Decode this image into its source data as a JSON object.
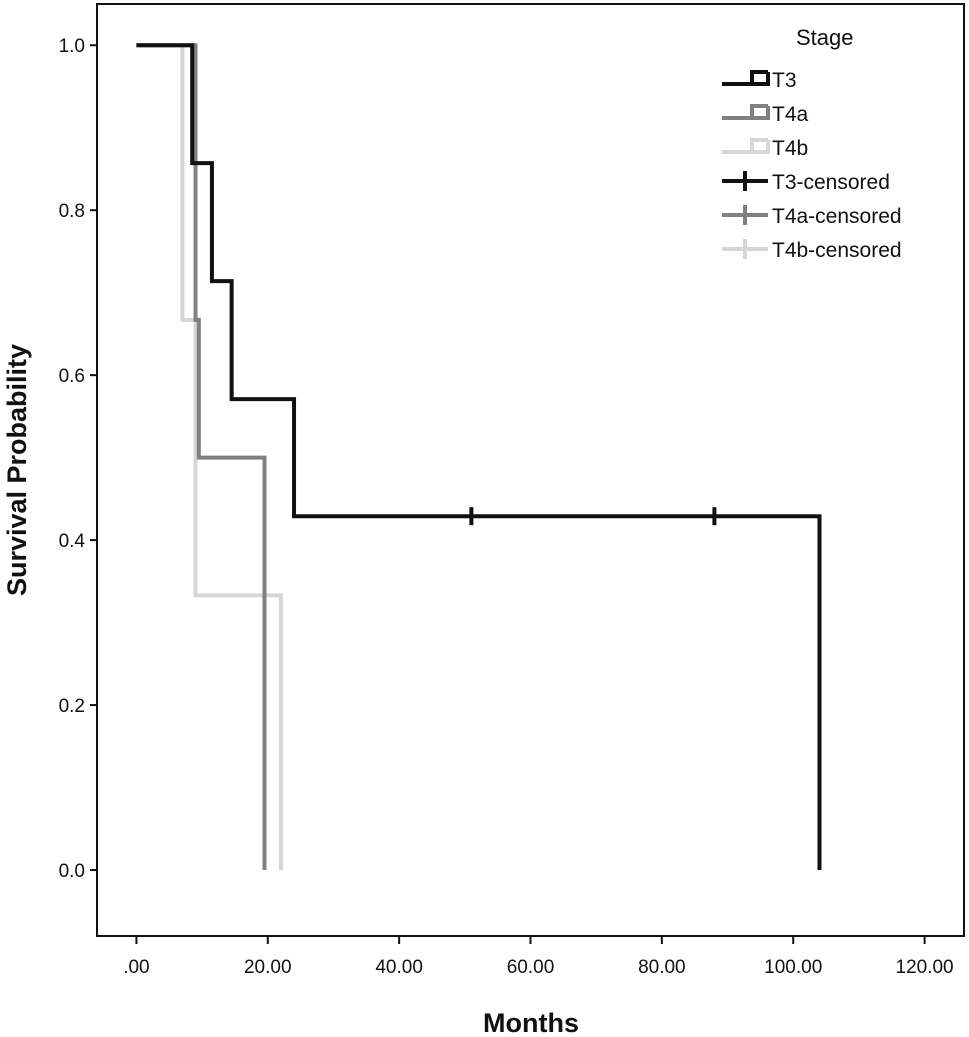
{
  "chart_data": {
    "type": "line",
    "subtype": "kaplan-meier-step",
    "xlabel": "Months",
    "ylabel": "Survival Probability",
    "xlim": [
      -6,
      126
    ],
    "ylim": [
      -0.08,
      1.05
    ],
    "x_ticks": [
      0,
      20,
      40,
      60,
      80,
      100,
      120
    ],
    "x_tick_labels": [
      ".00",
      "20.00",
      "40.00",
      "60.00",
      "80.00",
      "100.00",
      "120.00"
    ],
    "y_ticks": [
      0,
      0.2,
      0.4,
      0.6,
      0.8,
      1.0
    ],
    "y_tick_labels": [
      "0.0",
      "0.2",
      "0.4",
      "0.6",
      "0.8",
      "1.0"
    ],
    "grid": false,
    "legend": {
      "title": "Stage",
      "placement": "top-right",
      "entries": [
        {
          "label": "T3",
          "kind": "step",
          "color": "#111111"
        },
        {
          "label": "T4a",
          "kind": "step",
          "color": "#808080"
        },
        {
          "label": "T4b",
          "kind": "step",
          "color": "#d6d6d6"
        },
        {
          "label": "T3-censored",
          "kind": "censor",
          "color": "#111111"
        },
        {
          "label": "T4a-censored",
          "kind": "censor",
          "color": "#808080"
        },
        {
          "label": "T4b-censored",
          "kind": "censor",
          "color": "#d6d6d6"
        }
      ]
    },
    "series": [
      {
        "name": "T3",
        "color": "#111111",
        "x": [
          0,
          8.5,
          11.5,
          14.5,
          24,
          104
        ],
        "y": [
          1.0,
          0.857,
          0.714,
          0.571,
          0.429,
          0.0
        ],
        "censored": [
          {
            "x": 51,
            "y": 0.429
          },
          {
            "x": 88,
            "y": 0.429
          }
        ]
      },
      {
        "name": "T4a",
        "color": "#808080",
        "x": [
          0,
          9,
          9.5,
          19.5
        ],
        "y": [
          1.0,
          0.667,
          0.5,
          0.0
        ],
        "censored": []
      },
      {
        "name": "T4b",
        "color": "#d6d6d6",
        "x": [
          0,
          7,
          9,
          22
        ],
        "y": [
          1.0,
          0.667,
          0.333,
          0.0
        ],
        "censored": []
      }
    ]
  }
}
